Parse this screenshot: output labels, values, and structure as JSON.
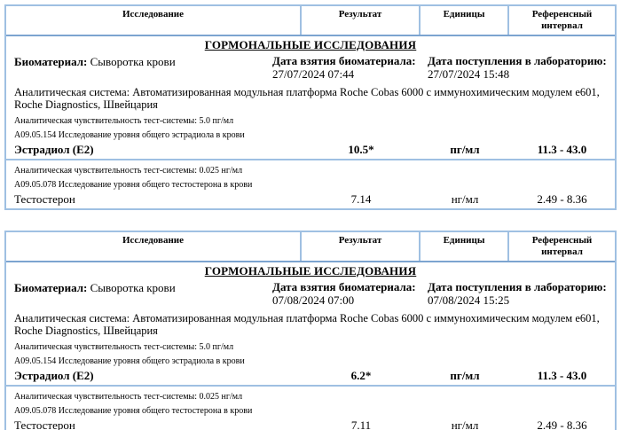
{
  "page": {
    "background": "#ffffff",
    "border_color": "#9fc0e2",
    "header_underline_color": "#7ca4d0",
    "text_color": "#000000"
  },
  "tables": [
    {
      "columns": [
        "Исследование",
        "Результат",
        "Единицы",
        "Референсный интервал"
      ],
      "section_title": "ГОРМОНАЛЬНЫЕ ИССЛЕДОВАНИЯ",
      "biomaterial_label": "Биоматериал:",
      "biomaterial_value": "Сыворотка крови",
      "date_taken_label": "Дата взятия биоматериала:",
      "date_taken_value": "27/07/2024 07:44",
      "date_received_label": "Дата поступления в лабораторию:",
      "date_received_value": "27/07/2024 15:48",
      "analytical_system": "Аналитическая система: Автоматизированная модульная платформа Roche Cobas 6000 с иммунохимическим модулем e601, Roche Diagnostics, Швейцария",
      "sections": [
        {
          "sensitivity": "Аналитическая чувствительность тест-системы: 5.0 пг/мл",
          "code_line": "A09.05.154 Исследование уровня общего эстрадиола в крови",
          "test": "Эстрадиол (E2)",
          "result": "10.5*",
          "units": "пг/мл",
          "reference": "11.3 - 43.0"
        },
        {
          "sensitivity": "Аналитическая чувствительность тест-системы: 0.025 нг/мл",
          "code_line": "A09.05.078 Исследование уровня общего тестостерона в крови",
          "test": "Тестостерон",
          "result": "7.14",
          "units": "нг/мл",
          "reference": "2.49 - 8.36"
        }
      ]
    },
    {
      "columns": [
        "Исследование",
        "Результат",
        "Единицы",
        "Референсный интервал"
      ],
      "section_title": "ГОРМОНАЛЬНЫЕ ИССЛЕДОВАНИЯ",
      "biomaterial_label": "Биоматериал:",
      "biomaterial_value": "Сыворотка крови",
      "date_taken_label": "Дата взятия биоматериала:",
      "date_taken_value": "07/08/2024 07:00",
      "date_received_label": "Дата поступления в лабораторию:",
      "date_received_value": "07/08/2024 15:25",
      "analytical_system": "Аналитическая система: Автоматизированная модульная платформа Roche Cobas 6000 с иммунохимическим модулем e601, Roche Diagnostics, Швейцария",
      "sections": [
        {
          "sensitivity": "Аналитическая чувствительность тест-системы: 5.0 пг/мл",
          "code_line": "A09.05.154 Исследование уровня общего эстрадиола в крови",
          "test": "Эстрадиол (E2)",
          "result": "6.2*",
          "units": "пг/мл",
          "reference": "11.3 - 43.0"
        },
        {
          "sensitivity": "Аналитическая чувствительность тест-системы: 0.025 нг/мл",
          "code_line": "A09.05.078 Исследование уровня общего тестостерона в крови",
          "test": "Тестостерон",
          "result": "7.11",
          "units": "нг/мл",
          "reference": "2.49 - 8.36"
        }
      ]
    }
  ]
}
